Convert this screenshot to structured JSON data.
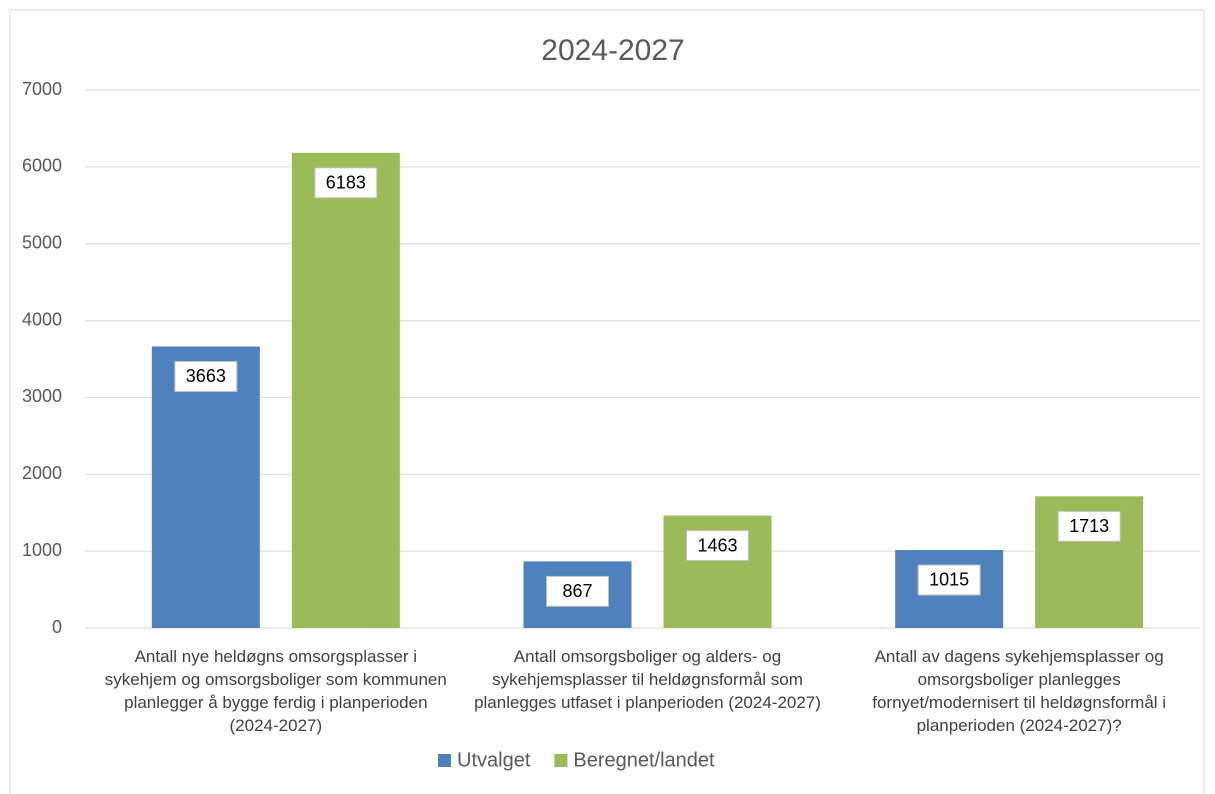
{
  "chart_data": {
    "type": "bar",
    "title": "2024-2027",
    "categories": [
      "Antall nye heldøgns omsorgsplasser i sykehjem og omsorgsboliger som kommunen  planlegger å bygge ferdig i planperioden (2024-2027)",
      "Antall omsorgsboliger og alders- og sykehjemsplasser til heldøgnsformål som planlegges utfaset i planperioden (2024-2027)",
      "Antall av dagens sykehjemsplasser og omsorgsboliger planlegges fornyet/modernisert til heldøgnsformål i planperioden (2024-2027)?"
    ],
    "series": [
      {
        "name": "Utvalget",
        "color": "#4f81bd",
        "values": [
          3663,
          867,
          1015
        ]
      },
      {
        "name": "Beregnet/landet",
        "color": "#9bbb59",
        "values": [
          6183,
          1463,
          1713
        ]
      }
    ],
    "ylim": [
      0,
      7000
    ],
    "yticks": [
      0,
      1000,
      2000,
      3000,
      4000,
      5000,
      6000,
      7000
    ],
    "grid": true,
    "legend": "bottom"
  }
}
